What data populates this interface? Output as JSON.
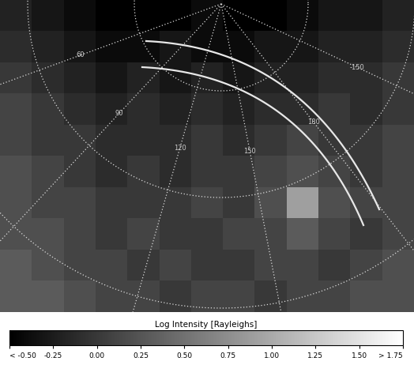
{
  "chart_data": {
    "type": "map",
    "longitude_labels": [
      60,
      90,
      120,
      150,
      180,
      -150
    ],
    "cells": [
      [
        -0.2,
        -0.3,
        -0.4,
        -0.5,
        -0.5,
        -0.5,
        -0.4,
        -0.5,
        -0.5,
        -0.4,
        -0.3,
        -0.3,
        -0.2
      ],
      [
        -0.1,
        -0.2,
        -0.3,
        -0.4,
        -0.4,
        -0.3,
        -0.4,
        -0.4,
        -0.3,
        -0.3,
        -0.2,
        -0.2,
        -0.1
      ],
      [
        0.0,
        -0.1,
        -0.2,
        -0.3,
        -0.2,
        -0.3,
        -0.2,
        -0.3,
        -0.2,
        -0.2,
        -0.1,
        -0.1,
        0.0
      ],
      [
        0.1,
        0.0,
        -0.1,
        -0.2,
        -0.1,
        -0.2,
        -0.1,
        -0.2,
        -0.1,
        -0.1,
        0.0,
        -0.1,
        0.0
      ],
      [
        0.1,
        0.0,
        0.0,
        -0.1,
        -0.1,
        -0.1,
        0.0,
        -0.1,
        0.0,
        0.1,
        0.0,
        0.0,
        0.1
      ],
      [
        0.2,
        0.1,
        0.0,
        -0.1,
        0.0,
        -0.1,
        0.0,
        0.0,
        0.1,
        0.2,
        0.1,
        0.0,
        0.1
      ],
      [
        0.2,
        0.1,
        0.1,
        0.0,
        0.0,
        0.0,
        0.1,
        0.0,
        0.2,
        0.9,
        0.2,
        0.1,
        0.1
      ],
      [
        0.2,
        0.2,
        0.1,
        0.0,
        0.1,
        0.0,
        0.0,
        0.1,
        0.1,
        0.3,
        0.1,
        0.0,
        0.1
      ],
      [
        0.3,
        0.2,
        0.1,
        0.1,
        0.0,
        0.1,
        0.0,
        0.0,
        0.1,
        0.1,
        0.0,
        0.1,
        0.2
      ],
      [
        0.3,
        0.3,
        0.2,
        0.1,
        0.1,
        0.0,
        0.1,
        0.1,
        0.0,
        0.1,
        0.1,
        0.2,
        0.2
      ]
    ],
    "colorbar": {
      "title": "Log Intensity [Rayleighs]",
      "range": [
        -0.5,
        1.75
      ],
      "ticks": [
        {
          "value": -0.5,
          "label": "< -0.50"
        },
        {
          "value": -0.25,
          "label": "-0.25"
        },
        {
          "value": 0.0,
          "label": "0.00"
        },
        {
          "value": 0.25,
          "label": "0.25"
        },
        {
          "value": 0.5,
          "label": "0.50"
        },
        {
          "value": 0.75,
          "label": "0.75"
        },
        {
          "value": 1.0,
          "label": "1.00"
        },
        {
          "value": 1.25,
          "label": "1.25"
        },
        {
          "value": 1.5,
          "label": "1.50"
        },
        {
          "value": 1.75,
          "label": "> 1.75"
        }
      ]
    }
  }
}
